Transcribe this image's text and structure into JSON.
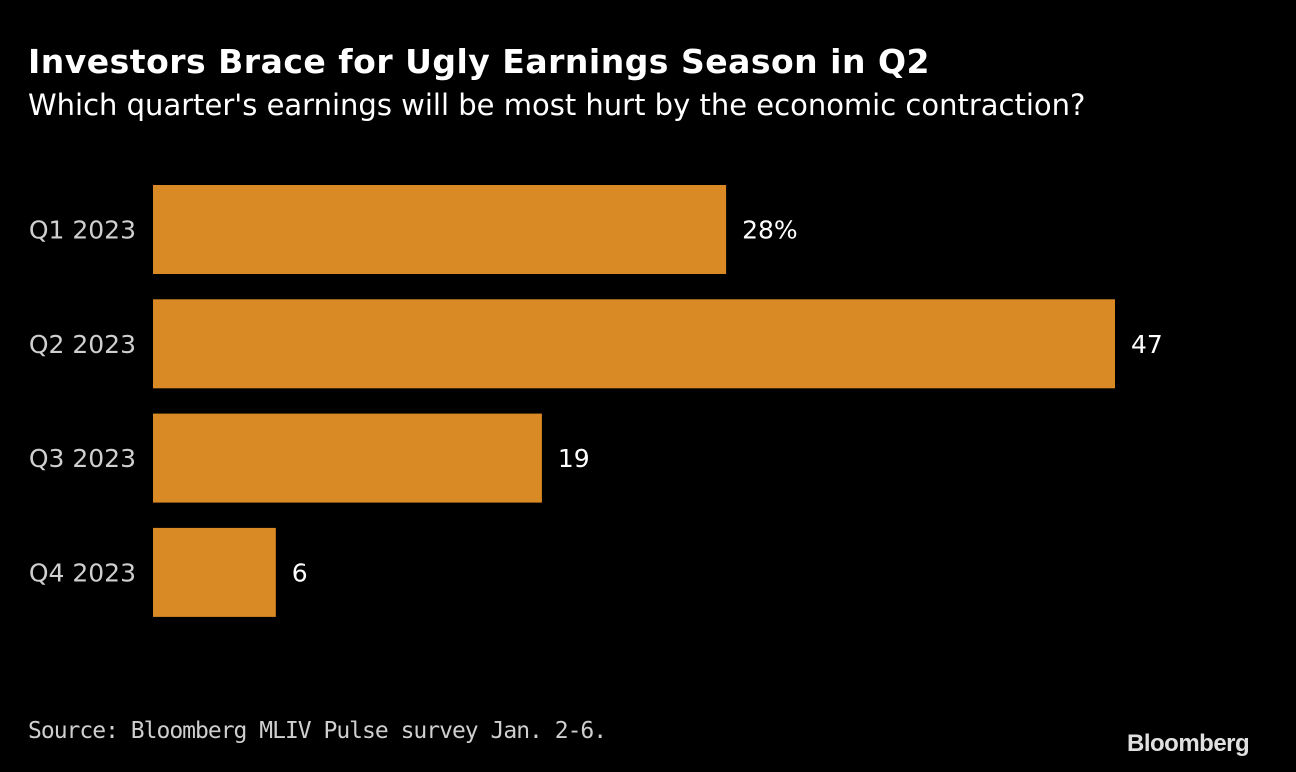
{
  "chart_data": {
    "type": "bar",
    "orientation": "horizontal",
    "title": "Investors Brace for Ugly Earnings Season in Q2",
    "subtitle": "Which quarter's earnings will be most hurt by the economic contraction?",
    "categories": [
      "Q1 2023",
      "Q2 2023",
      "Q3 2023",
      "Q4 2023"
    ],
    "values": [
      28,
      47,
      19,
      6
    ],
    "data_labels": [
      "28%",
      "47",
      "19",
      "6"
    ],
    "xlim": [
      0,
      47
    ],
    "grid": false,
    "bar_color": "#DA8A24",
    "background": "#000000"
  },
  "source": "Source: Bloomberg MLIV Pulse survey Jan. 2-6.",
  "logo": "Bloomberg"
}
